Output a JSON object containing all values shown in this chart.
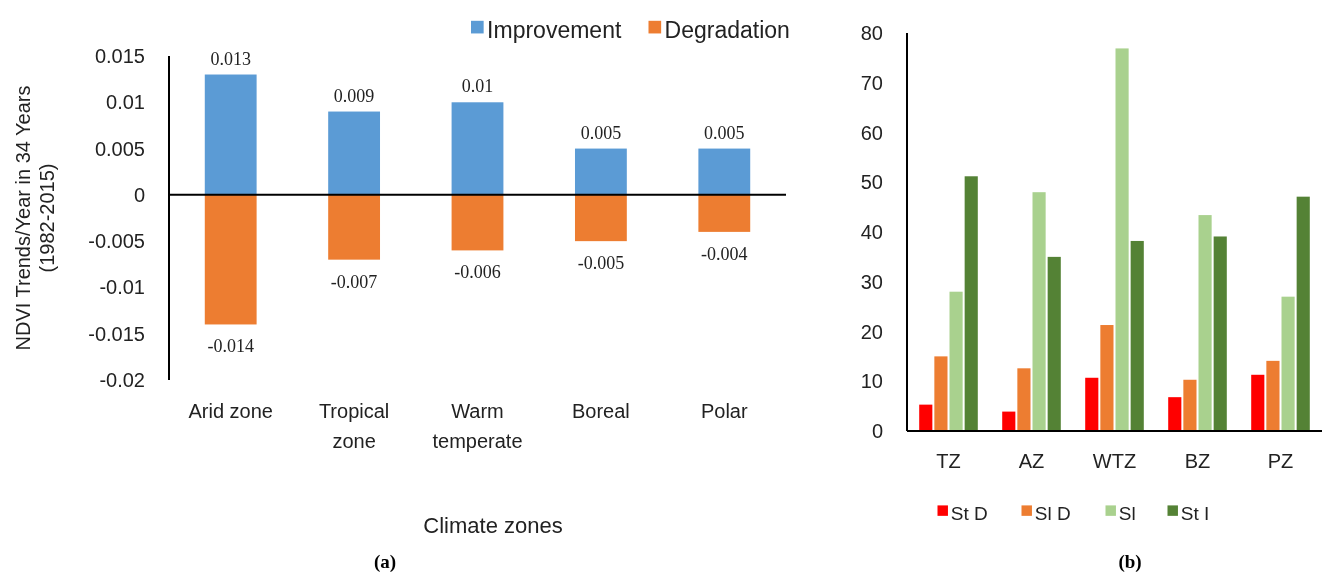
{
  "chart_data": [
    {
      "type": "bar",
      "stacked": true,
      "categories": [
        "Arid zone",
        "Tropical zone",
        "Warm temperate",
        "Boreal",
        "Polar"
      ],
      "ylabel": "NDVI Trends/Year in 34 Years (1982-2015)",
      "xlabel": "Climate zones",
      "ylim": [
        -0.02,
        0.015
      ],
      "yticks": [
        -0.02,
        -0.015,
        -0.01,
        -0.005,
        0,
        0.005,
        0.01,
        0.015
      ],
      "legend": "top right",
      "annotations": [
        "(a)"
      ],
      "series": [
        {
          "name": "Improvement",
          "color": "#5b9bd5",
          "values": [
            0.013,
            0.009,
            0.01,
            0.005,
            0.005
          ],
          "value_labels": [
            "0.013",
            "0.009",
            "0.01",
            "0.005",
            "0.005"
          ]
        },
        {
          "name": "Degradation",
          "color": "#ed7d31",
          "values": [
            -0.014,
            -0.007,
            -0.006,
            -0.005,
            -0.004
          ],
          "value_labels": [
            "-0.014",
            "-0.007",
            "-0.006",
            "-0.005",
            "-0.004"
          ]
        }
      ]
    },
    {
      "type": "bar",
      "categories": [
        "TZ",
        "AZ",
        "WTZ",
        "BZ",
        "PZ"
      ],
      "ylim": [
        0,
        80
      ],
      "yticks": [
        0,
        10,
        20,
        30,
        40,
        50,
        60,
        70,
        80
      ],
      "legend": "bottom",
      "annotations": [
        "(b)"
      ],
      "series": [
        {
          "name": "St D",
          "color": "#ff0000",
          "values": [
            5.3,
            3.9,
            10.7,
            6.8,
            11.3
          ]
        },
        {
          "name": "Sl D",
          "color": "#ed7d31",
          "values": [
            15.0,
            12.6,
            21.3,
            10.3,
            14.1
          ]
        },
        {
          "name": "Sl",
          "color": "#a9d18e",
          "values": [
            28.0,
            48.0,
            76.9,
            43.4,
            27.0
          ]
        },
        {
          "name": "St I",
          "color": "#548235",
          "values": [
            51.2,
            35.0,
            38.2,
            39.1,
            47.1
          ]
        }
      ]
    }
  ]
}
